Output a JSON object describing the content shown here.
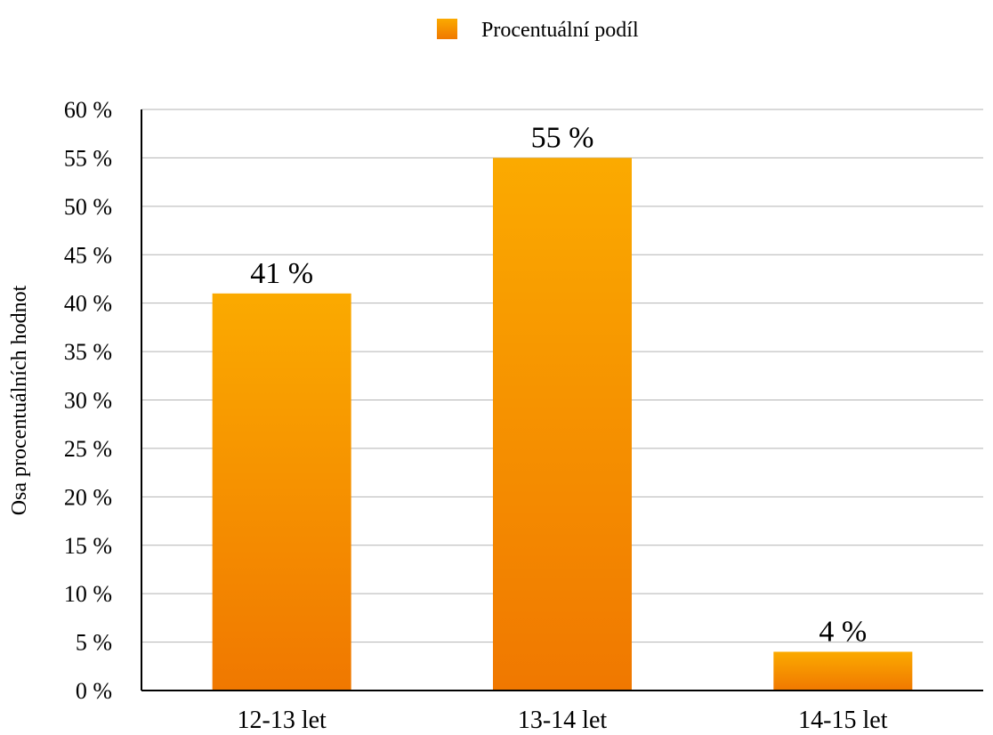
{
  "chart_data": {
    "type": "bar",
    "categories": [
      "12-13 let",
      "13-14 let",
      "14-15 let"
    ],
    "series": [
      {
        "name": "Procentuální podíl",
        "values": [
          41,
          55,
          4
        ]
      }
    ],
    "data_labels": [
      "41 %",
      "55 %",
      "4 %"
    ],
    "title": "",
    "xlabel": "",
    "ylabel": "Osa procentuálních hodnot",
    "ylim": [
      0,
      60
    ],
    "y_ticks": [
      0,
      5,
      10,
      15,
      20,
      25,
      30,
      35,
      40,
      45,
      50,
      55,
      60
    ],
    "y_tick_suffix": " %",
    "grid": true,
    "legend_position": "top",
    "colors": {
      "bar_top": "#FBAA00",
      "bar_bottom": "#F07800",
      "grid": "#B3B3B3",
      "axis": "#000000"
    }
  }
}
